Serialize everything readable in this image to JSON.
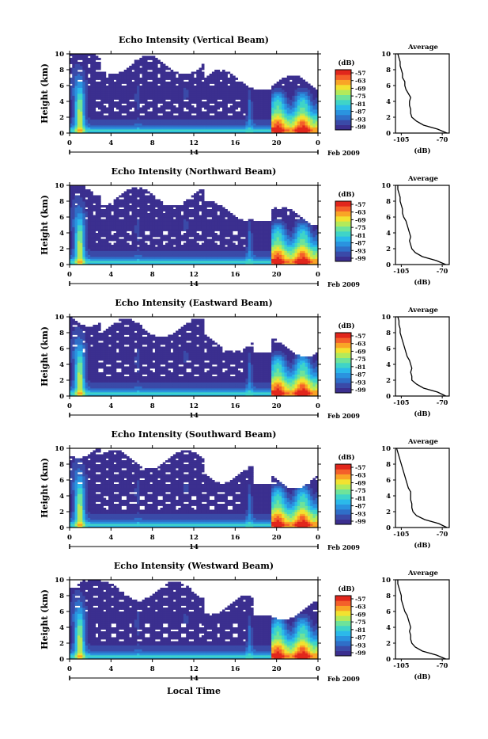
{
  "chart_data": [
    {
      "type": "heatmap",
      "title": "Echo Intensity (Vertical Beam)",
      "ylabel": "Height (km)",
      "y_ticks": [
        "0",
        "2",
        "4",
        "6",
        "8",
        "10"
      ],
      "ylim": [
        0,
        10
      ],
      "x_ticks": [
        "0",
        "4",
        "8",
        "12",
        "16",
        "20",
        "0"
      ],
      "xlim": [
        0,
        24
      ],
      "date_day": "14",
      "date_suffix": "Feb 2009",
      "colorbar": {
        "unit": "(dB)",
        "ticks": [
          "-57",
          "-63",
          "-69",
          "-75",
          "-81",
          "-87",
          "-93",
          "-99"
        ]
      },
      "profile": {
        "title": "Average",
        "xlabel": "(dB)",
        "x_ticks": [
          "-105",
          "-70"
        ],
        "xlim": [
          -110,
          -64
        ],
        "y_ticks": [
          "0",
          "2",
          "4",
          "6",
          "8",
          "10"
        ],
        "heights": [
          0.0,
          0.5,
          1.0,
          1.5,
          2.0,
          2.5,
          3.0,
          3.5,
          4.0,
          4.5,
          5.0,
          5.5,
          6.0,
          6.5,
          7.0,
          7.5,
          8.0,
          8.5,
          9.0,
          9.5,
          10.0
        ],
        "values": [
          -66,
          -74,
          -86,
          -92,
          -96,
          -97,
          -97,
          -98,
          -98,
          -97,
          -99,
          -101,
          -102,
          -102,
          -104,
          -104,
          -105,
          -106,
          -106,
          -107,
          -108
        ]
      }
    },
    {
      "type": "heatmap",
      "title": "Echo Intensity (Northward Beam)",
      "ylabel": "Height (km)",
      "y_ticks": [
        "0",
        "2",
        "4",
        "6",
        "8",
        "10"
      ],
      "ylim": [
        0,
        10
      ],
      "x_ticks": [
        "0",
        "4",
        "8",
        "12",
        "16",
        "20",
        "0"
      ],
      "xlim": [
        0,
        24
      ],
      "date_day": "14",
      "date_suffix": "Feb 2009",
      "colorbar": {
        "unit": "(dB)",
        "ticks": [
          "-57",
          "-63",
          "-69",
          "-75",
          "-81",
          "-87",
          "-93",
          "-99"
        ]
      },
      "profile": {
        "title": "Average",
        "xlabel": "(dB)",
        "x_ticks": [
          "-105",
          "-70"
        ],
        "xlim": [
          -110,
          -64
        ],
        "y_ticks": [
          "0",
          "2",
          "4",
          "6",
          "8",
          "10"
        ],
        "heights": [
          0.0,
          0.5,
          1.0,
          1.5,
          2.0,
          2.5,
          3.0,
          3.5,
          4.0,
          4.5,
          5.0,
          5.5,
          6.0,
          6.5,
          7.0,
          7.5,
          8.0,
          8.5,
          9.0,
          9.5,
          10.0
        ],
        "values": [
          -67,
          -75,
          -87,
          -93,
          -96,
          -97,
          -98,
          -97,
          -98,
          -99,
          -100,
          -101,
          -103,
          -104,
          -104,
          -105,
          -106,
          -106,
          -107,
          -108,
          -108
        ]
      }
    },
    {
      "type": "heatmap",
      "title": "Echo Intensity (Eastward Beam)",
      "ylabel": "Height (km)",
      "y_ticks": [
        "0",
        "2",
        "4",
        "6",
        "8",
        "10"
      ],
      "ylim": [
        0,
        10
      ],
      "x_ticks": [
        "0",
        "4",
        "8",
        "12",
        "16",
        "20",
        "0"
      ],
      "xlim": [
        0,
        24
      ],
      "date_day": "14",
      "date_suffix": "Feb 2009",
      "colorbar": {
        "unit": "(dB)",
        "ticks": [
          "-57",
          "-63",
          "-69",
          "-75",
          "-81",
          "-87",
          "-93",
          "-99"
        ]
      },
      "profile": {
        "title": "Average",
        "xlabel": "(dB)",
        "x_ticks": [
          "-105",
          "-70"
        ],
        "xlim": [
          -110,
          -64
        ],
        "y_ticks": [
          "0",
          "2",
          "4",
          "6",
          "8",
          "10"
        ],
        "heights": [
          0.0,
          0.5,
          1.0,
          1.5,
          2.0,
          2.5,
          3.0,
          3.5,
          4.0,
          4.5,
          5.0,
          5.5,
          6.0,
          6.5,
          7.0,
          7.5,
          8.0,
          8.5,
          9.0,
          9.5,
          10.0
        ],
        "values": [
          -67,
          -74,
          -86,
          -92,
          -96,
          -96,
          -97,
          -96,
          -97,
          -98,
          -100,
          -101,
          -102,
          -103,
          -104,
          -105,
          -106,
          -106,
          -107,
          -107,
          -108
        ]
      }
    },
    {
      "type": "heatmap",
      "title": "Echo Intensity (Southward Beam)",
      "ylabel": "Height (km)",
      "y_ticks": [
        "0",
        "2",
        "4",
        "6",
        "8",
        "10"
      ],
      "ylim": [
        0,
        10
      ],
      "x_ticks": [
        "0",
        "4",
        "8",
        "12",
        "16",
        "20",
        "0"
      ],
      "xlim": [
        0,
        24
      ],
      "date_day": "14",
      "date_suffix": "Feb 2009",
      "colorbar": {
        "unit": "(dB)",
        "ticks": [
          "-57",
          "-63",
          "-69",
          "-75",
          "-81",
          "-87",
          "-93",
          "-99"
        ]
      },
      "profile": {
        "title": "Average",
        "xlabel": "(dB)",
        "x_ticks": [
          "-105",
          "-70"
        ],
        "xlim": [
          -110,
          -64
        ],
        "y_ticks": [
          "0",
          "2",
          "4",
          "6",
          "8",
          "10"
        ],
        "heights": [
          0.0,
          0.5,
          1.0,
          1.5,
          2.0,
          2.5,
          3.0,
          3.5,
          4.0,
          4.5,
          5.0,
          5.5,
          6.0,
          6.5,
          7.0,
          7.5,
          8.0,
          8.5,
          9.0,
          9.5,
          10.0
        ],
        "values": [
          -66,
          -73,
          -85,
          -92,
          -95,
          -96,
          -96,
          -97,
          -97,
          -97,
          -99,
          -100,
          -101,
          -102,
          -103,
          -104,
          -105,
          -106,
          -107,
          -108,
          -109
        ]
      }
    },
    {
      "type": "heatmap",
      "title": "Echo Intensity (Westward Beam)",
      "ylabel": "Height (km)",
      "y_ticks": [
        "0",
        "2",
        "4",
        "6",
        "8",
        "10"
      ],
      "ylim": [
        0,
        10
      ],
      "x_ticks": [
        "0",
        "4",
        "8",
        "12",
        "16",
        "20",
        "0"
      ],
      "xlim": [
        0,
        24
      ],
      "date_day": "14",
      "date_suffix": "Feb 2009",
      "xlabel": "Local Time",
      "colorbar": {
        "unit": "(dB)",
        "ticks": [
          "-57",
          "-63",
          "-69",
          "-75",
          "-81",
          "-87",
          "-93",
          "-99"
        ]
      },
      "profile": {
        "title": "Average",
        "xlabel": "(dB)",
        "x_ticks": [
          "-105",
          "-70"
        ],
        "xlim": [
          -110,
          -64
        ],
        "y_ticks": [
          "0",
          "2",
          "4",
          "6",
          "8",
          "10"
        ],
        "heights": [
          0.0,
          0.5,
          1.0,
          1.5,
          2.0,
          2.5,
          3.0,
          3.5,
          4.0,
          4.5,
          5.0,
          5.5,
          6.0,
          6.5,
          7.0,
          7.5,
          8.0,
          8.5,
          9.0,
          9.5,
          10.0
        ],
        "values": [
          -67,
          -75,
          -87,
          -93,
          -96,
          -97,
          -97,
          -98,
          -97,
          -98,
          -99,
          -100,
          -102,
          -103,
          -104,
          -105,
          -105,
          -106,
          -107,
          -108,
          -108
        ]
      }
    }
  ],
  "colors": {
    "colormap": [
      "#3b2f8f",
      "#3a4aa8",
      "#2f6fc8",
      "#2a93df",
      "#2bb9ea",
      "#3fd4c8",
      "#6ee39a",
      "#b3ea5a",
      "#f2e230",
      "#f9a526",
      "#f4602a",
      "#e1261c"
    ]
  }
}
